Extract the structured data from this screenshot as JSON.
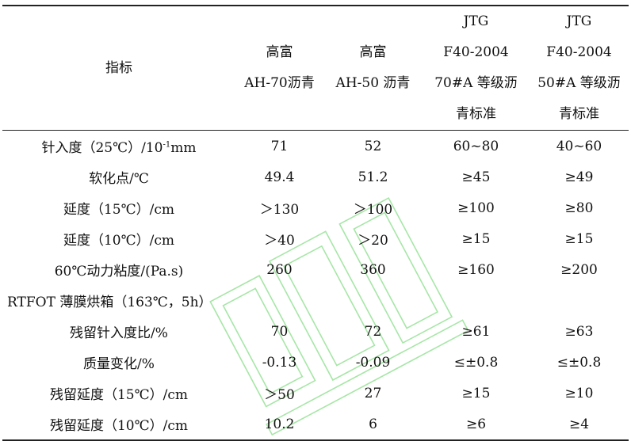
{
  "headers": {
    "indicator": "指标",
    "col1": [
      "高富",
      "AH-70沥青"
    ],
    "col2": [
      "高富",
      "AH-50 沥青"
    ],
    "col3": [
      "JTG",
      "F40-2004",
      "70#A 等级沥",
      "青标准"
    ],
    "col4": [
      "JTG",
      "F40-2004",
      "50#A 等级沥",
      "青标准"
    ]
  },
  "penetration_label": {
    "prefix": "针入度（25℃）/10",
    "sup": "-1",
    "suffix": "mm"
  },
  "rows": [
    {
      "label": "",
      "values": [
        "71",
        "52",
        "60~80",
        "40~60"
      ]
    },
    {
      "label": "软化点/℃",
      "values": [
        "49.4",
        "51.2",
        "≥45",
        "≥49"
      ]
    },
    {
      "label": "延度（15℃）/cm",
      "values": [
        "＞130",
        "＞100",
        "≥100",
        "≥80"
      ]
    },
    {
      "label": "延度（10℃）/cm",
      "values": [
        "＞40",
        "＞20",
        "≥15",
        "≥15"
      ]
    },
    {
      "label": "60℃动力粘度/(Pa.s)",
      "values": [
        "260",
        "360",
        "≥160",
        "≥200"
      ]
    },
    {
      "label": "RTFOT 薄膜烘箱（163℃，5h）",
      "values": []
    },
    {
      "label": "残留针入度比/%",
      "values": [
        "70",
        "72",
        "≥61",
        "≥63"
      ]
    },
    {
      "label": "质量变化/%",
      "values": [
        "-0.13",
        "-0.09",
        "≤±0.8",
        "≤±0.8"
      ]
    },
    {
      "label": "残留延度（15℃）/cm",
      "values": [
        "＞50",
        "27",
        "≥15",
        "≥10"
      ]
    },
    {
      "label": "残留延度（10℃）/cm",
      "values": [
        "10.2",
        "6",
        "≥6",
        "≥4"
      ]
    }
  ],
  "colors": {
    "rule": "#222222",
    "watermark": "#a6e6a6"
  }
}
